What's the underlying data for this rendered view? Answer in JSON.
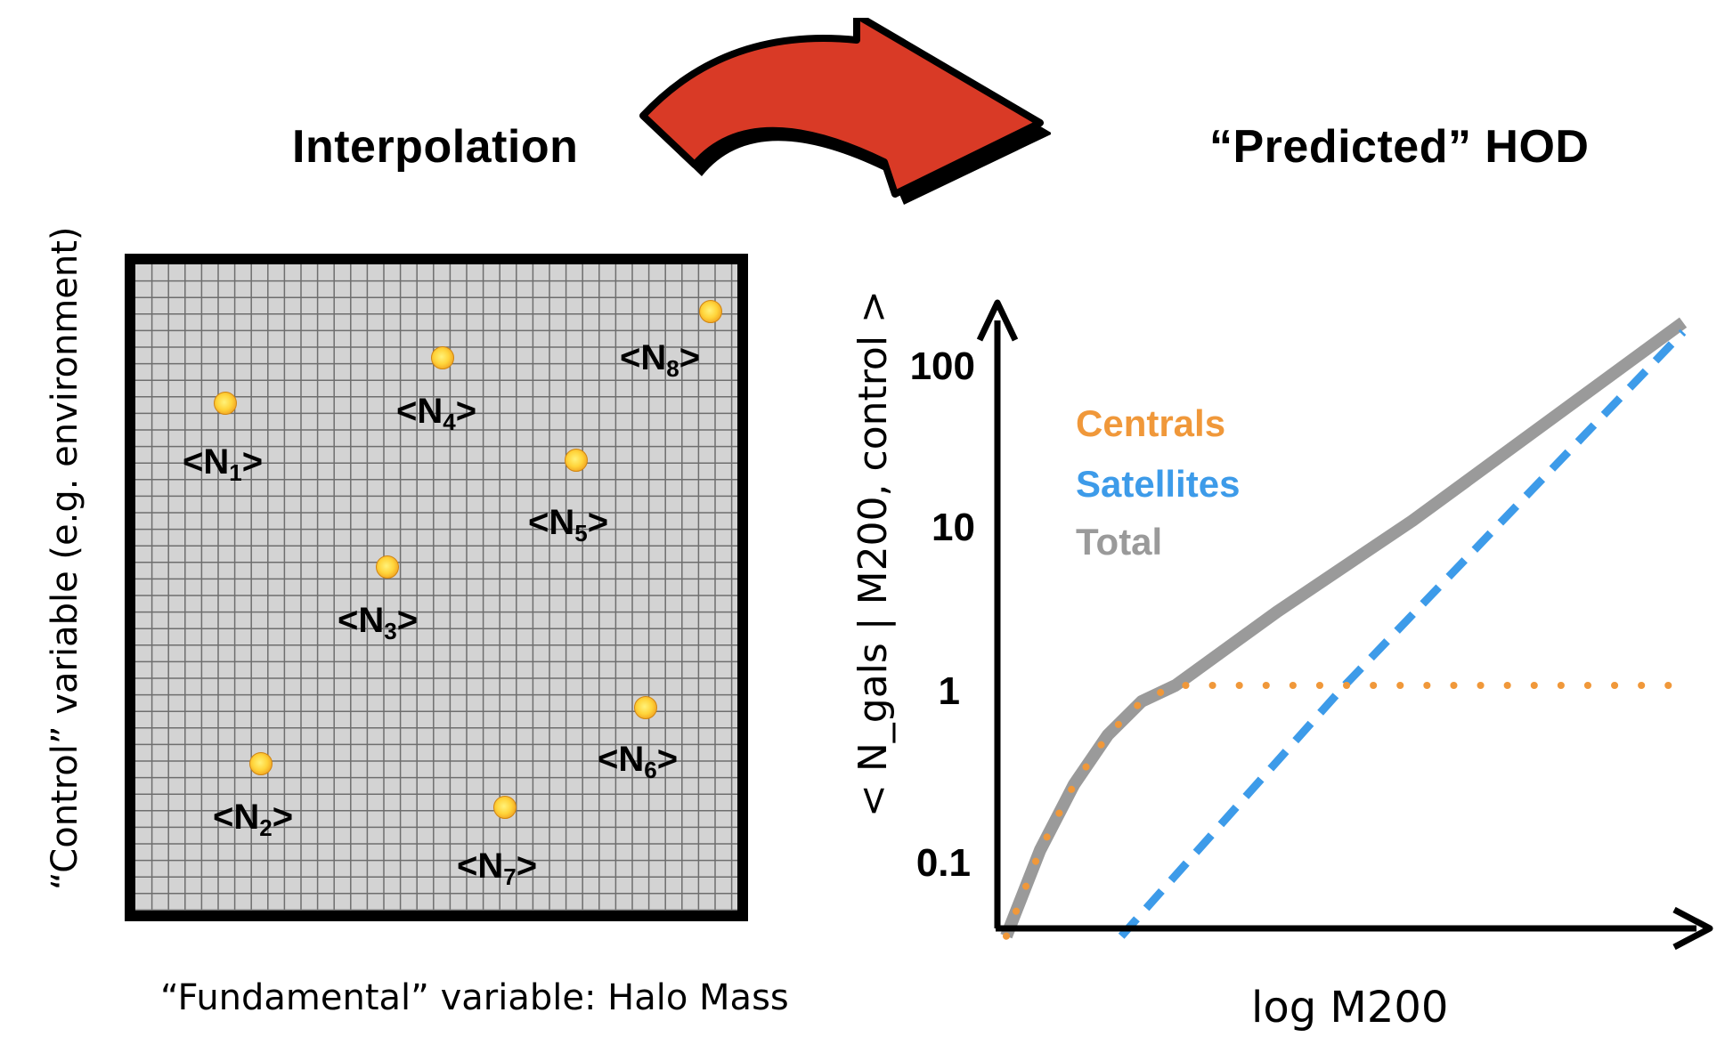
{
  "titles": {
    "interpolation": "Interpolation",
    "predicted": "“Predicted” HOD"
  },
  "left_panel": {
    "x_label": "“Fundamental” variable: Halo Mass",
    "y_label": "“Control” variable (e.g. environment)",
    "nodes": [
      {
        "label": "<N",
        "sub": "1",
        "close": ">"
      },
      {
        "label": "<N",
        "sub": "2",
        "close": ">"
      },
      {
        "label": "<N",
        "sub": "3",
        "close": ">"
      },
      {
        "label": "<N",
        "sub": "4",
        "close": ">"
      },
      {
        "label": "<N",
        "sub": "5",
        "close": ">"
      },
      {
        "label": "<N",
        "sub": "6",
        "close": ">"
      },
      {
        "label": "<N",
        "sub": "7",
        "close": ">"
      },
      {
        "label": "<N",
        "sub": "8",
        "close": ">"
      }
    ]
  },
  "colors": {
    "arrow_fill": "#d93a26",
    "centrals": "#f0983a",
    "satellites": "#3d9be9",
    "total": "#9a9a9a",
    "grid_bg": "#d3d3d3",
    "grid_line": "#6e6e6e",
    "node": "#ffd43a"
  },
  "chart_data": {
    "type": "line",
    "title": "“Predicted” HOD",
    "xlabel": "log M200",
    "ylabel": "< N_gals | M200, control >",
    "y_scale": "log",
    "y_ticks": [
      "0.1",
      "1",
      "10",
      "100"
    ],
    "ylim": [
      0.03,
      200
    ],
    "xlim": [
      0,
      1
    ],
    "legend": [
      "Centrals",
      "Satellites",
      "Total"
    ],
    "legend_placement": "top-left",
    "series": [
      {
        "name": "Centrals",
        "style": "dotted",
        "x": [
          0.0,
          0.05,
          0.1,
          0.15,
          0.2,
          0.25,
          0.4,
          0.6,
          0.8,
          1.0
        ],
        "y": [
          0.03,
          0.1,
          0.25,
          0.5,
          0.8,
          1.0,
          1.0,
          1.0,
          1.0,
          1.0
        ]
      },
      {
        "name": "Satellites",
        "style": "dashed",
        "x": [
          0.17,
          0.5,
          1.0
        ],
        "y": [
          0.03,
          1.0,
          140
        ]
      },
      {
        "name": "Total",
        "style": "solid",
        "x": [
          0.0,
          0.05,
          0.1,
          0.15,
          0.2,
          0.25,
          0.4,
          0.6,
          0.8,
          1.0
        ],
        "y": [
          0.03,
          0.1,
          0.25,
          0.5,
          0.8,
          1.0,
          2.8,
          10,
          40,
          160
        ]
      }
    ]
  }
}
